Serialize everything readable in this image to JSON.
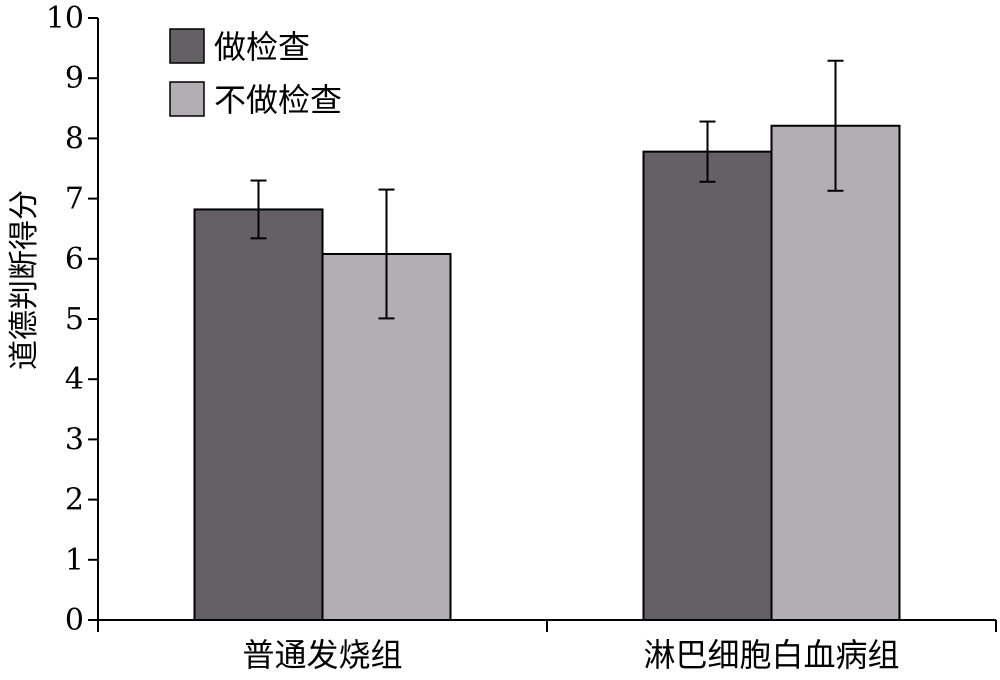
{
  "chart_data": {
    "type": "bar",
    "title": "",
    "xlabel": "",
    "ylabel": "道德判断得分",
    "ylim": [
      0,
      10
    ],
    "yticks": [
      0,
      1,
      2,
      3,
      4,
      5,
      6,
      7,
      8,
      9,
      10
    ],
    "categories": [
      "普通发烧组",
      "淋巴细胞白血病组"
    ],
    "series": [
      {
        "name": "做检查",
        "values": [
          6.82,
          7.78
        ],
        "error": [
          0.48,
          0.5
        ],
        "color": "#656065"
      },
      {
        "name": "不做检查",
        "values": [
          6.08,
          8.21
        ],
        "error": [
          1.07,
          1.08
        ],
        "color": "#b1afb3"
      }
    ],
    "legend": "top-left",
    "grid": false,
    "error_bars": true
  }
}
